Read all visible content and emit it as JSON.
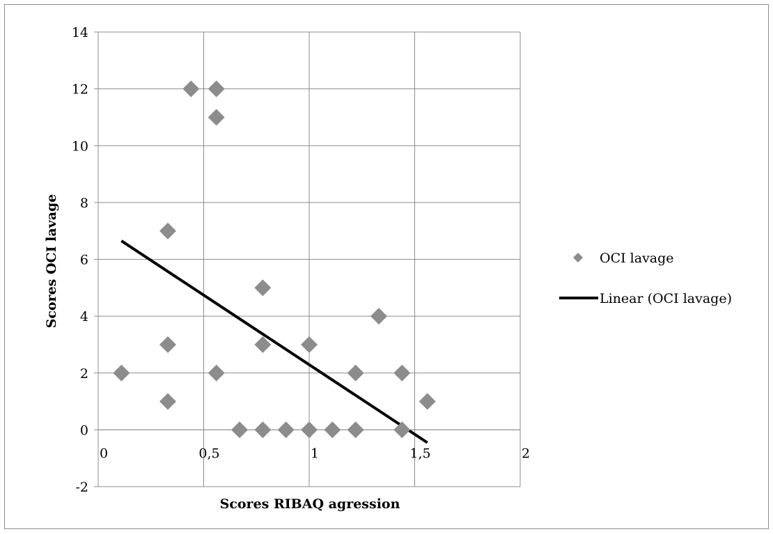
{
  "chart_data": {
    "type": "scatter",
    "title": "",
    "xlabel": "Scores RIBAQ agression",
    "ylabel": "Scores OCI lavage",
    "xlim": [
      0,
      2
    ],
    "ylim": [
      -2,
      14
    ],
    "x_ticks": [
      0,
      0.5,
      1,
      1.5,
      2
    ],
    "x_tick_labels": [
      "0",
      "0,5",
      "1",
      "1,5",
      "2"
    ],
    "y_ticks": [
      -2,
      0,
      2,
      4,
      6,
      8,
      10,
      12,
      14
    ],
    "y_tick_labels": [
      "-2",
      "0",
      "2",
      "4",
      "6",
      "8",
      "10",
      "12",
      "14"
    ],
    "grid": true,
    "legend_position": "right",
    "series": [
      {
        "name": "OCI lavage",
        "marker": "diamond",
        "color": "#8c8c8c",
        "points": [
          {
            "x": 0.11,
            "y": 2
          },
          {
            "x": 0.33,
            "y": 7
          },
          {
            "x": 0.33,
            "y": 3
          },
          {
            "x": 0.33,
            "y": 1
          },
          {
            "x": 0.44,
            "y": 12
          },
          {
            "x": 0.56,
            "y": 12
          },
          {
            "x": 0.56,
            "y": 11
          },
          {
            "x": 0.56,
            "y": 2
          },
          {
            "x": 0.67,
            "y": 0
          },
          {
            "x": 0.78,
            "y": 5
          },
          {
            "x": 0.78,
            "y": 3
          },
          {
            "x": 0.78,
            "y": 0
          },
          {
            "x": 0.89,
            "y": 0
          },
          {
            "x": 1.0,
            "y": 3
          },
          {
            "x": 1.0,
            "y": 0
          },
          {
            "x": 1.11,
            "y": 0
          },
          {
            "x": 1.22,
            "y": 2
          },
          {
            "x": 1.22,
            "y": 0
          },
          {
            "x": 1.33,
            "y": 4
          },
          {
            "x": 1.44,
            "y": 2
          },
          {
            "x": 1.44,
            "y": 0
          },
          {
            "x": 1.56,
            "y": 1
          }
        ]
      },
      {
        "name": "Linear (OCI lavage)",
        "type": "line",
        "color": "#000000",
        "points": [
          {
            "x": 0.11,
            "y": 6.65
          },
          {
            "x": 1.56,
            "y": -0.45
          }
        ]
      }
    ]
  }
}
